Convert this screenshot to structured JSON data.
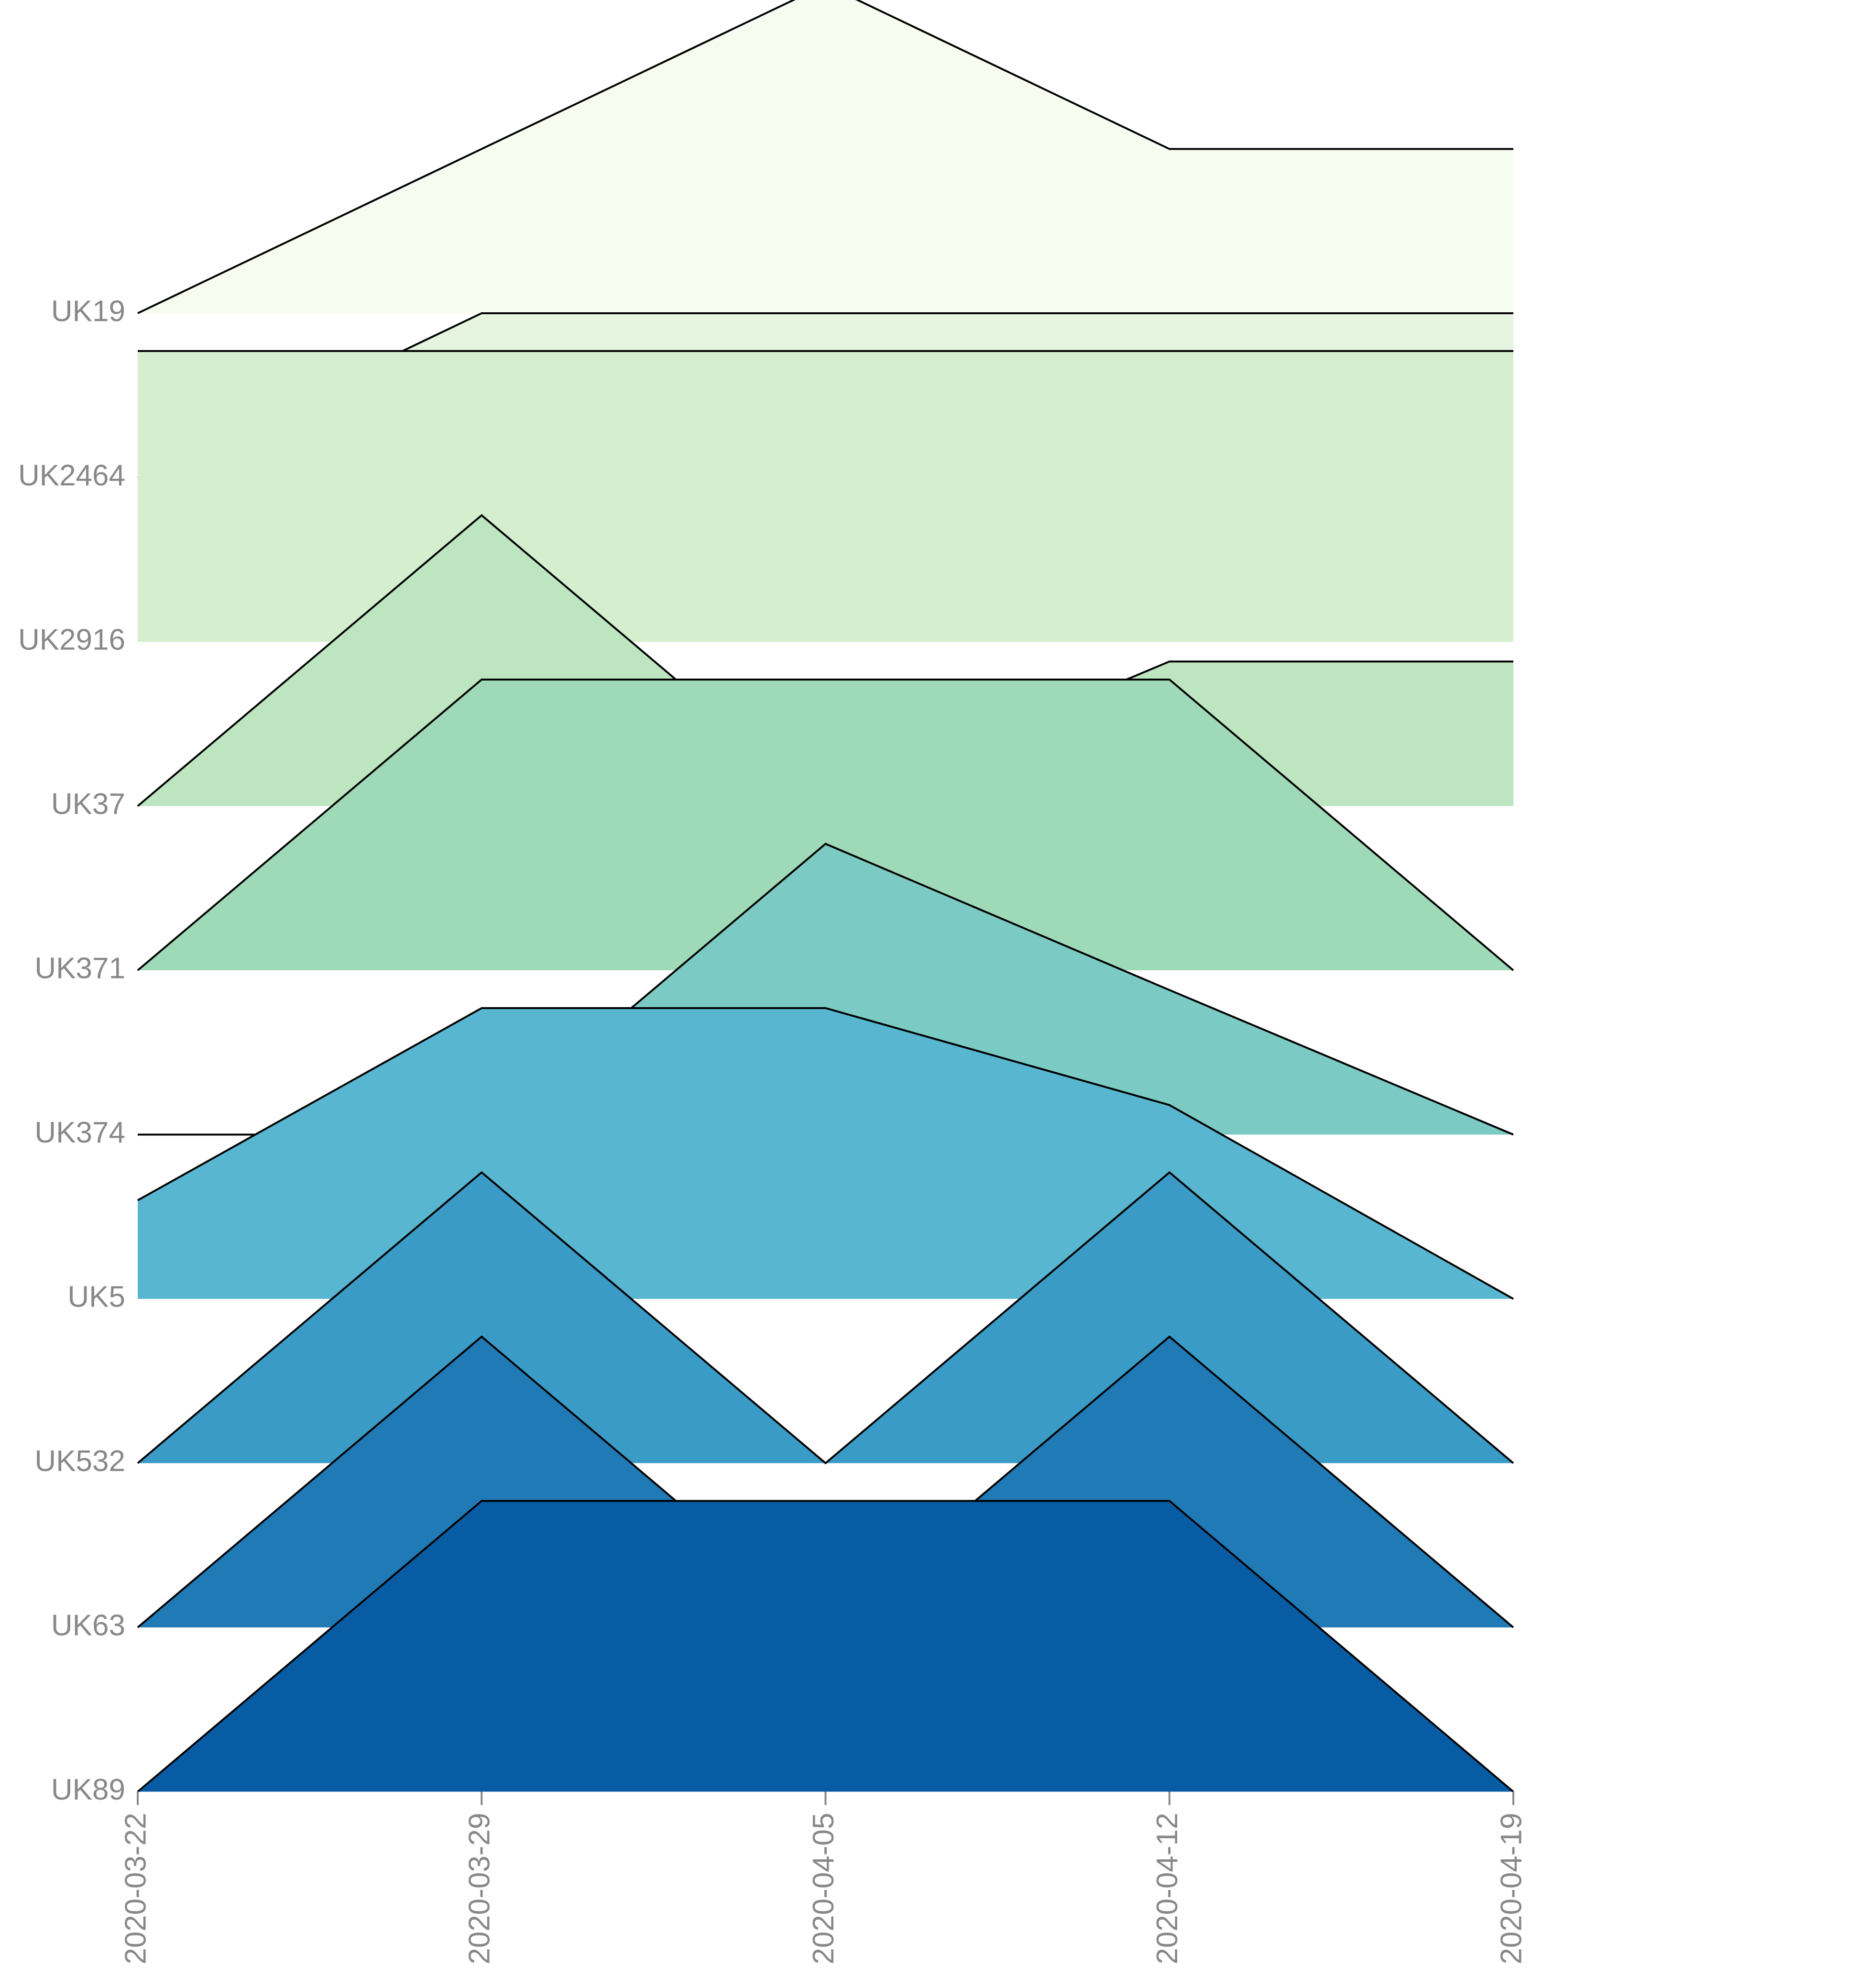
{
  "chart_data": {
    "type": "area",
    "subtype": "ridgeline",
    "x": [
      "2020-03-22",
      "2020-03-29",
      "2020-04-05",
      "2020-04-12",
      "2020-04-19"
    ],
    "categories": [
      "UK19",
      "UK2464",
      "UK2916",
      "UK37",
      "UK371",
      "UK374",
      "UK5",
      "UK532",
      "UK63",
      "UK89"
    ],
    "series": [
      {
        "name": "UK19",
        "color": "#f7fcf0",
        "values": [
          0.0,
          1.0,
          2.0,
          1.0,
          1.0
        ]
      },
      {
        "name": "UK2464",
        "color": "#e4f4df",
        "values": [
          0.0,
          1.0,
          1.0,
          1.0,
          1.0
        ]
      },
      {
        "name": "UK2916",
        "color": "#d4eece",
        "values": [
          1.77,
          1.77,
          1.77,
          1.77,
          1.77
        ]
      },
      {
        "name": "UK37",
        "color": "#bde5bf",
        "values": [
          0.0,
          1.77,
          0.0,
          0.88,
          0.88
        ]
      },
      {
        "name": "UK371",
        "color": "#9fdab8",
        "values": [
          0.0,
          1.77,
          1.77,
          1.77,
          0.0
        ]
      },
      {
        "name": "UK374",
        "color": "#7bcbc4",
        "values": [
          0.0,
          0.0,
          1.77,
          0.88,
          0.0
        ]
      },
      {
        "name": "UK5",
        "color": "#58b6d1",
        "values": [
          0.6,
          1.77,
          1.77,
          1.18,
          0.0
        ]
      },
      {
        "name": "UK532",
        "color": "#399bc6",
        "values": [
          0.0,
          1.77,
          0.0,
          1.77,
          0.0
        ]
      },
      {
        "name": "UK63",
        "color": "#1f7ab6",
        "values": [
          0.0,
          1.77,
          0.0,
          1.77,
          0.0
        ]
      },
      {
        "name": "UK89",
        "color": "#085ca4",
        "values": [
          0.0,
          1.77,
          1.77,
          1.77,
          0.0
        ]
      }
    ],
    "xlabel": "",
    "ylabel": "",
    "grid": false,
    "legend": "none"
  }
}
